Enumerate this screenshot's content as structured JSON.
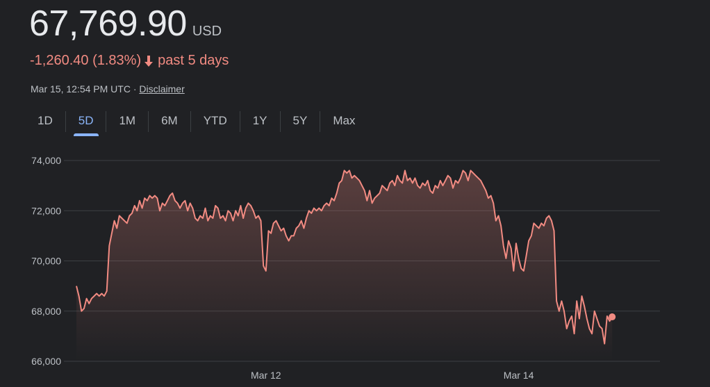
{
  "quote": {
    "price": "67,769.90",
    "currency": "USD",
    "change": "-1,260.40 (1.83%)",
    "period": "past 5 days",
    "timestamp": "Mar 15, 12:54 PM UTC · ",
    "disclaimer": "Disclaimer",
    "down_color": "#f28b82"
  },
  "tabs": [
    {
      "label": "1D",
      "active": false
    },
    {
      "label": "5D",
      "active": true
    },
    {
      "label": "1M",
      "active": false
    },
    {
      "label": "6M",
      "active": false
    },
    {
      "label": "YTD",
      "active": false
    },
    {
      "label": "1Y",
      "active": false
    },
    {
      "label": "5Y",
      "active": false
    },
    {
      "label": "Max",
      "active": false
    }
  ],
  "icons": {
    "change_arrow": "arrow-down-icon"
  },
  "chart_data": {
    "type": "area",
    "title": "",
    "xlabel": "",
    "ylabel": "",
    "ylim": [
      66000,
      74000
    ],
    "xlim": [
      0,
      229
    ],
    "y_ticks": [
      74000,
      72000,
      70000,
      68000,
      66000
    ],
    "y_tick_labels": [
      "74,000",
      "72,000",
      "70,000",
      "68,000",
      "66,000"
    ],
    "x_ticks": [
      {
        "x": 75,
        "label": "Mar 12"
      },
      {
        "x": 175,
        "label": "Mar 14"
      }
    ],
    "grid": true,
    "legend": "none",
    "line_color": "#f28b82",
    "series": [
      {
        "values": [
          69000,
          68600,
          68000,
          68100,
          68500,
          68300,
          68500,
          68600,
          68700,
          68600,
          68700,
          68600,
          68800,
          70600,
          71100,
          71600,
          71300,
          71800,
          71700,
          71600,
          71500,
          71800,
          71900,
          72200,
          72000,
          72400,
          72100,
          72500,
          72400,
          72600,
          72500,
          72600,
          72500,
          72000,
          72300,
          72200,
          72400,
          72600,
          72700,
          72400,
          72300,
          72100,
          72300,
          72400,
          72000,
          72300,
          72100,
          71700,
          71600,
          71800,
          71700,
          72100,
          71600,
          71800,
          71700,
          72200,
          72100,
          71700,
          71800,
          71600,
          72000,
          71900,
          71600,
          72000,
          71800,
          72200,
          71700,
          72100,
          72300,
          72200,
          72000,
          71700,
          71800,
          71600,
          69800,
          69600,
          71200,
          71100,
          71500,
          71600,
          71400,
          71200,
          71300,
          71000,
          70800,
          71000,
          71000,
          71300,
          71400,
          71600,
          71300,
          71700,
          72000,
          71900,
          72100,
          72000,
          72100,
          72000,
          72200,
          72300,
          72200,
          72500,
          72400,
          72700,
          73100,
          73200,
          73600,
          73500,
          73600,
          73300,
          73400,
          73300,
          73200,
          73000,
          72800,
          72400,
          72800,
          72300,
          72500,
          72600,
          72700,
          73000,
          72900,
          72800,
          73100,
          73200,
          73000,
          73400,
          73200,
          73100,
          73600,
          73200,
          73300,
          73100,
          73300,
          73000,
          72900,
          73100,
          73000,
          73200,
          72800,
          72700,
          73000,
          72900,
          73200,
          73000,
          73200,
          73400,
          73300,
          72900,
          73200,
          73100,
          73300,
          73600,
          73500,
          73200,
          73600,
          73500,
          73400,
          73300,
          73200,
          73000,
          72800,
          72500,
          72600,
          72300,
          71600,
          71800,
          71400,
          70600,
          70100,
          70800,
          70500,
          69600,
          70700,
          70100,
          69700,
          69600,
          70200,
          70800,
          71000,
          71500,
          71400,
          71300,
          71500,
          71400,
          71700,
          71800,
          71600,
          71200,
          68400,
          68000,
          68400,
          68000,
          67300,
          67600,
          67800,
          67100,
          68400,
          67700,
          68600,
          68200,
          67700,
          67300,
          67100,
          68000,
          67700,
          67400,
          67300,
          66700,
          67800,
          67600,
          67769.9
        ],
        "last_value": 67769.9
      }
    ]
  }
}
